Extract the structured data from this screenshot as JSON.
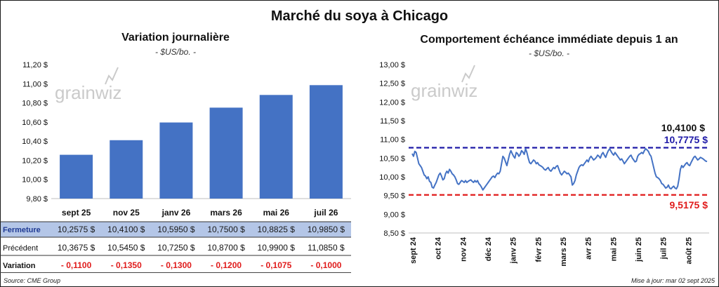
{
  "title": "Marché du soya à Chicago",
  "left": {
    "subtitle": "Variation journalière",
    "unit": "- $US/bo. -",
    "watermark": "grainwiz",
    "table": {
      "rows": [
        {
          "label": "Fermeture",
          "cells": [
            "10,2575  $",
            "10,4100  $",
            "10,5950  $",
            "10,7500  $",
            "10,8825  $",
            "10,9850  $"
          ]
        },
        {
          "label": "Précédent",
          "cells": [
            "10,3675  $",
            "10,5450  $",
            "10,7250  $",
            "10,8700  $",
            "10,9900  $",
            "11,0850  $"
          ]
        },
        {
          "label": "Variation",
          "cells": [
            "- 0,1100",
            "- 0,1350",
            "- 0,1300",
            "- 0,1200",
            "- 0,1075",
            "- 0,1000"
          ]
        }
      ]
    }
  },
  "right": {
    "subtitle": "Comportement  échéance immédiate depuis 1 an",
    "unit": "- $US/bo. -",
    "watermark": "grainwiz"
  },
  "footer": {
    "source": "Source: CME Group",
    "updated": "Mise à jour: mar 02 sept 2025"
  },
  "colors": {
    "bar": "#4472c4",
    "line": "#4472c4",
    "max_line": "#1f1aa8",
    "min_line": "#e01b1b",
    "negative": "#e01b1b",
    "table_header_bg": "#b4c6e7",
    "table_header_text": "#1f3a93"
  },
  "chart_data": [
    {
      "type": "bar",
      "categories": [
        "sept 25",
        "nov 25",
        "janv 26",
        "mars 26",
        "mai 26",
        "juil 26"
      ],
      "values": [
        10.2575,
        10.41,
        10.595,
        10.75,
        10.8825,
        10.985
      ],
      "ylim": [
        9.8,
        11.2
      ],
      "yticks": [
        9.8,
        10.0,
        10.2,
        10.4,
        10.6,
        10.8,
        11.0,
        11.2
      ],
      "ytick_labels": [
        "9,80 $",
        "10,00 $",
        "10,20 $",
        "10,40 $",
        "10,60 $",
        "10,80 $",
        "11,00 $",
        "11,20 $"
      ],
      "grid": false
    },
    {
      "type": "line",
      "x_labels": [
        "sept 24",
        "oct 24",
        "nov 24",
        "déc 24",
        "janv 25",
        "févr 25",
        "mars 25",
        "avr 25",
        "mai 25",
        "juin 25",
        "juil 25",
        "août 25"
      ],
      "series": [
        {
          "values": [
            10.62,
            10.55,
            10.68,
            10.65,
            10.5,
            10.35,
            10.3,
            10.25,
            10.15,
            10.05,
            10.02,
            9.95,
            10.0,
            9.88,
            9.85,
            9.72,
            9.7,
            9.78,
            9.85,
            9.95,
            10.05,
            10.1,
            10.02,
            9.92,
            9.95,
            10.08,
            10.15,
            10.1,
            10.2,
            10.15,
            10.08,
            10.05,
            10.0,
            9.92,
            9.82,
            9.8,
            9.85,
            9.9,
            9.88,
            9.85,
            9.9,
            9.85,
            9.88,
            9.9,
            9.92,
            9.88,
            9.85,
            9.9,
            9.86,
            9.9,
            9.82,
            9.78,
            9.72,
            9.65,
            9.7,
            9.75,
            9.8,
            9.85,
            9.9,
            9.95,
            10.0,
            10.02,
            9.98,
            10.05,
            10.1,
            10.08,
            10.15,
            10.35,
            10.55,
            10.5,
            10.4,
            10.3,
            10.45,
            10.6,
            10.7,
            10.62,
            10.55,
            10.5,
            10.65,
            10.62,
            10.55,
            10.6,
            10.7,
            10.66,
            10.6,
            10.75,
            10.65,
            10.5,
            10.38,
            10.35,
            10.4,
            10.45,
            10.42,
            10.35,
            10.38,
            10.32,
            10.3,
            10.28,
            10.25,
            10.2,
            10.18,
            10.22,
            10.25,
            10.18,
            10.15,
            10.2,
            10.25,
            10.22,
            10.28,
            10.3,
            10.2,
            10.1,
            10.05,
            10.1,
            10.15,
            10.12,
            10.08,
            10.1,
            10.05,
            10.0,
            9.78,
            9.82,
            9.9,
            10.05,
            10.15,
            10.25,
            10.3,
            10.32,
            10.3,
            10.35,
            10.4,
            10.45,
            10.4,
            10.5,
            10.55,
            10.5,
            10.45,
            10.48,
            10.52,
            10.58,
            10.55,
            10.5,
            10.6,
            10.65,
            10.58,
            10.52,
            10.62,
            10.7,
            10.75,
            10.68,
            10.62,
            10.58,
            10.65,
            10.6,
            10.55,
            10.5,
            10.45,
            10.48,
            10.42,
            10.35,
            10.4,
            10.45,
            10.5,
            10.55,
            10.58,
            10.5,
            10.45,
            10.4,
            10.42,
            10.55,
            10.6,
            10.62,
            10.65,
            10.62,
            10.7,
            10.75,
            10.72,
            10.68,
            10.6,
            10.55,
            10.4,
            10.25,
            10.1,
            10.0,
            9.98,
            9.95,
            9.9,
            9.82,
            9.8,
            9.75,
            9.7,
            9.72,
            9.78,
            9.7,
            9.68,
            9.72,
            9.75,
            9.7,
            9.68,
            9.75,
            9.95,
            10.2,
            10.3,
            10.25,
            10.3,
            10.35,
            10.38,
            10.32,
            10.3,
            10.38,
            10.45,
            10.52,
            10.55,
            10.5,
            10.45,
            10.48,
            10.52,
            10.5,
            10.48,
            10.45,
            10.42,
            10.41
          ]
        }
      ],
      "ylim": [
        8.5,
        13.0
      ],
      "yticks": [
        8.5,
        9.0,
        9.5,
        10.0,
        10.5,
        11.0,
        11.5,
        12.0,
        12.5,
        13.0
      ],
      "ytick_labels": [
        "8,50 $",
        "9,00 $",
        "9,50 $",
        "10,00 $",
        "10,50 $",
        "11,00 $",
        "11,50 $",
        "12,00 $",
        "12,50 $",
        "13,00 $"
      ],
      "max_line": 10.7775,
      "min_line": 9.5175,
      "annotations": [
        {
          "text": "10,4100 $",
          "value": 10.41
        },
        {
          "text": "10,7775  $",
          "value": 10.7775
        },
        {
          "text": "9,5175  $",
          "value": 9.5175
        }
      ],
      "grid": false
    }
  ]
}
